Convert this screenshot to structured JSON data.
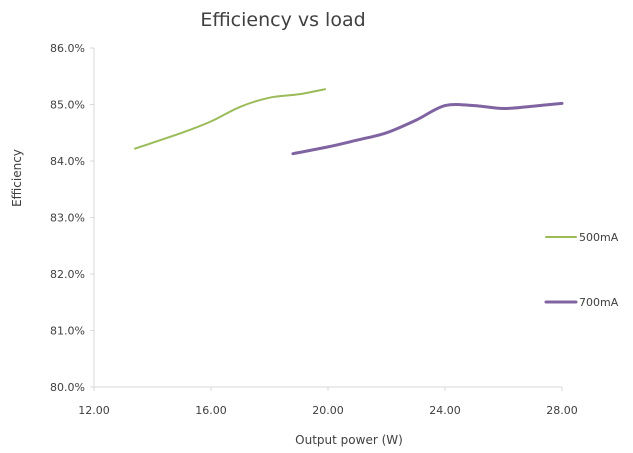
{
  "chart_data": {
    "type": "line",
    "title": "Efficiency vs load",
    "xlabel": "Output power (W)",
    "ylabel": "Efficiency",
    "xlim": [
      12,
      28
    ],
    "ylim": [
      80,
      86
    ],
    "x_ticks": [
      "12.00",
      "16.00",
      "20.00",
      "24.00",
      "28.00"
    ],
    "y_ticks": [
      "80.0%",
      "81.0%",
      "82.0%",
      "83.0%",
      "84.0%",
      "85.0%",
      "86.0%"
    ],
    "grid": false,
    "legend_position": "right",
    "series": [
      {
        "name": "500mA",
        "color": "#9BBB59",
        "x": [
          13.4,
          15.0,
          16.0,
          17.0,
          18.0,
          19.0,
          19.9
        ],
        "y": [
          84.22,
          84.5,
          84.7,
          84.96,
          85.12,
          85.18,
          85.27
        ]
      },
      {
        "name": "700mA",
        "color": "#8064A2",
        "x": [
          18.8,
          20.0,
          21.0,
          22.0,
          23.0,
          24.0,
          25.0,
          26.0,
          27.0,
          28.0
        ],
        "y": [
          84.13,
          84.25,
          84.37,
          84.5,
          84.72,
          84.98,
          84.98,
          84.93,
          84.97,
          85.02
        ]
      }
    ]
  }
}
